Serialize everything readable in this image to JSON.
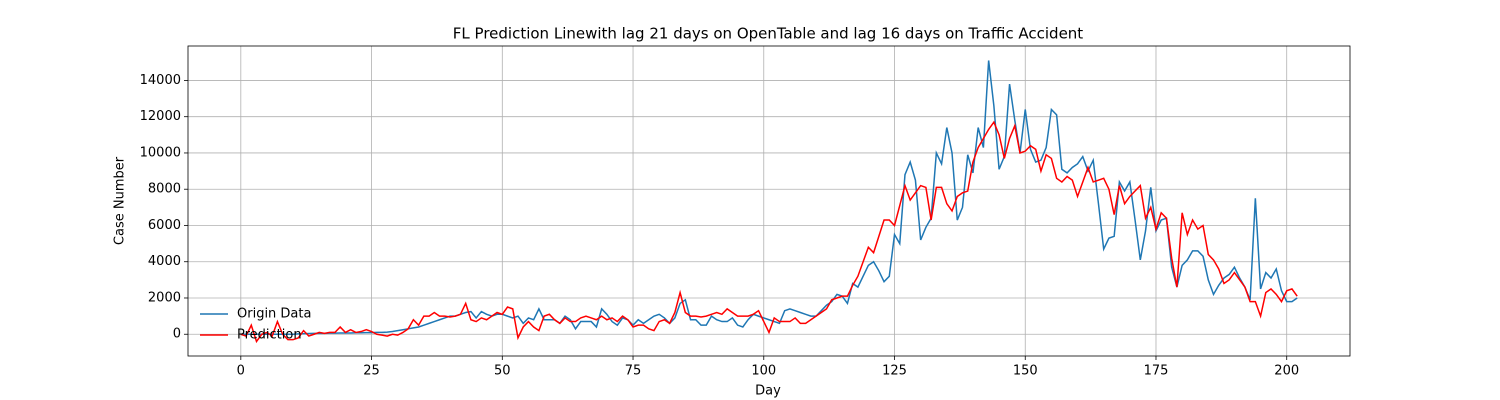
{
  "chart_data": {
    "type": "line",
    "title": "FL Prediction Linewith lag 21 days on OpenTable and lag 16 days on Traffic Accident",
    "x_label": "Day",
    "y_label": "Case Number",
    "x": [
      0,
      1,
      2,
      3,
      4,
      5,
      6,
      7,
      8,
      9,
      10,
      11,
      12,
      13,
      14,
      15,
      16,
      17,
      18,
      19,
      20,
      21,
      22,
      23,
      24,
      25,
      26,
      27,
      28,
      29,
      30,
      31,
      32,
      33,
      34,
      35,
      36,
      37,
      38,
      39,
      40,
      41,
      42,
      43,
      44,
      45,
      46,
      47,
      48,
      49,
      50,
      51,
      52,
      53,
      54,
      55,
      56,
      57,
      58,
      59,
      60,
      61,
      62,
      63,
      64,
      65,
      66,
      67,
      68,
      69,
      70,
      71,
      72,
      73,
      74,
      75,
      76,
      77,
      78,
      79,
      80,
      81,
      82,
      83,
      84,
      85,
      86,
      87,
      88,
      89,
      90,
      91,
      92,
      93,
      94,
      95,
      96,
      97,
      98,
      99,
      100,
      101,
      102,
      103,
      104,
      105,
      106,
      107,
      108,
      109,
      110,
      111,
      112,
      113,
      114,
      115,
      116,
      117,
      118,
      119,
      120,
      121,
      122,
      123,
      124,
      125,
      126,
      127,
      128,
      129,
      130,
      131,
      132,
      133,
      134,
      135,
      136,
      137,
      138,
      139,
      140,
      141,
      142,
      143,
      144,
      145,
      146,
      147,
      148,
      149,
      150,
      151,
      152,
      153,
      154,
      155,
      156,
      157,
      158,
      159,
      160,
      161,
      162,
      163,
      164,
      165,
      166,
      167,
      168,
      169,
      170,
      171,
      172,
      173,
      174,
      175,
      176,
      177,
      178,
      179,
      180,
      181,
      182,
      183,
      184,
      185,
      186,
      187,
      188,
      189,
      190,
      191,
      192,
      193,
      194,
      195,
      196,
      197,
      198,
      199,
      200,
      201,
      202
    ],
    "series": [
      {
        "name": "Origin Data",
        "color": "#1f77b4",
        "values": [
          0,
          0,
          0,
          0,
          0,
          0,
          0,
          0,
          0,
          0,
          0,
          20,
          30,
          40,
          50,
          50,
          50,
          60,
          60,
          70,
          70,
          70,
          80,
          80,
          90,
          90,
          100,
          100,
          120,
          150,
          200,
          250,
          300,
          350,
          400,
          500,
          600,
          700,
          800,
          900,
          1000,
          1000,
          1100,
          1200,
          1250,
          900,
          1250,
          1100,
          1000,
          1100,
          1100,
          1000,
          900,
          1000,
          600,
          900,
          800,
          1400,
          800,
          800,
          800,
          600,
          1000,
          800,
          300,
          700,
          700,
          700,
          400,
          1400,
          1100,
          700,
          500,
          900,
          800,
          500,
          800,
          600,
          800,
          1000,
          1100,
          900,
          600,
          900,
          1700,
          1900,
          800,
          800,
          500,
          500,
          1000,
          800,
          700,
          700,
          900,
          500,
          400,
          800,
          1100,
          1000,
          900,
          800,
          700,
          600,
          1300,
          1400,
          1300,
          1200,
          1100,
          1000,
          1000,
          1300,
          1600,
          1800,
          2200,
          2100,
          1700,
          2800,
          2600,
          3200,
          3800,
          4000,
          3500,
          2900,
          3200,
          5500,
          5000,
          8800,
          9500,
          8500,
          5200,
          5900,
          6400,
          10000,
          9400,
          11400,
          10000,
          6300,
          7000,
          9900,
          8900,
          11400,
          10300,
          15100,
          12600,
          9100,
          9800,
          13800,
          11800,
          10000,
          12400,
          10200,
          9500,
          9600,
          10300,
          12400,
          12100,
          9100,
          8900,
          9200,
          9400,
          9800,
          9000,
          9600,
          7200,
          4700,
          5300,
          5400,
          8400,
          7900,
          8400,
          6300,
          4100,
          5700,
          8100,
          5700,
          6300,
          6400,
          3700,
          2600,
          3800,
          4100,
          4600,
          4600,
          4300,
          3000,
          2200,
          2700,
          3100,
          3300,
          3700,
          3100,
          2600,
          1900,
          7500,
          2500,
          3400,
          3100,
          3600,
          2400,
          1800,
          1800,
          2000
        ]
      },
      {
        "name": "Prediction",
        "color": "#ff0000",
        "values": [
          0,
          -100,
          500,
          -400,
          0,
          100,
          -100,
          700,
          0,
          -300,
          -300,
          -200,
          200,
          -100,
          0,
          100,
          50,
          100,
          100,
          400,
          100,
          250,
          100,
          150,
          250,
          150,
          0,
          -50,
          -100,
          0,
          -50,
          100,
          300,
          800,
          500,
          1000,
          1000,
          1200,
          1000,
          1000,
          950,
          1000,
          1100,
          1700,
          800,
          700,
          900,
          800,
          1000,
          1200,
          1100,
          1500,
          1400,
          -200,
          400,
          700,
          400,
          200,
          1000,
          1100,
          800,
          600,
          900,
          700,
          700,
          900,
          1000,
          900,
          800,
          1000,
          800,
          900,
          700,
          1000,
          800,
          400,
          500,
          500,
          300,
          200,
          700,
          800,
          600,
          1200,
          2300,
          1200,
          1000,
          1000,
          950,
          1000,
          1100,
          1200,
          1100,
          1400,
          1200,
          1000,
          1000,
          1000,
          1100,
          1300,
          700,
          100,
          900,
          700,
          700,
          700,
          900,
          600,
          600,
          800,
          1000,
          1200,
          1400,
          1900,
          2000,
          2100,
          2100,
          2700,
          3200,
          4000,
          4800,
          4500,
          5400,
          6300,
          6300,
          6000,
          7100,
          8200,
          7400,
          7800,
          8200,
          8100,
          6300,
          8100,
          8100,
          7200,
          6800,
          7600,
          7800,
          7900,
          9500,
          10300,
          10800,
          11300,
          11700,
          11000,
          9700,
          10800,
          11500,
          10000,
          10100,
          10400,
          10200,
          9000,
          9900,
          9700,
          8600,
          8400,
          8700,
          8500,
          7600,
          8400,
          9200,
          8400,
          8500,
          8600,
          8000,
          6600,
          8200,
          7200,
          7600,
          7900,
          8200,
          6400,
          7000,
          5800,
          6700,
          6400,
          4200,
          2600,
          6700,
          5500,
          6300,
          5800,
          6000,
          4400,
          4100,
          3600,
          2800,
          3000,
          3400,
          3000,
          2600,
          1800,
          1800,
          1000,
          2300,
          2500,
          2200,
          1800,
          2400,
          2500,
          2100
        ]
      }
    ],
    "xlim": [
      -10.1,
      212.1
    ],
    "ylim": [
      -1200,
      15900
    ],
    "xticks": [
      0,
      25,
      50,
      75,
      100,
      125,
      150,
      175,
      200
    ],
    "yticks": [
      0,
      2000,
      4000,
      6000,
      8000,
      10000,
      12000,
      14000
    ],
    "grid": true,
    "legend": "lower left"
  }
}
